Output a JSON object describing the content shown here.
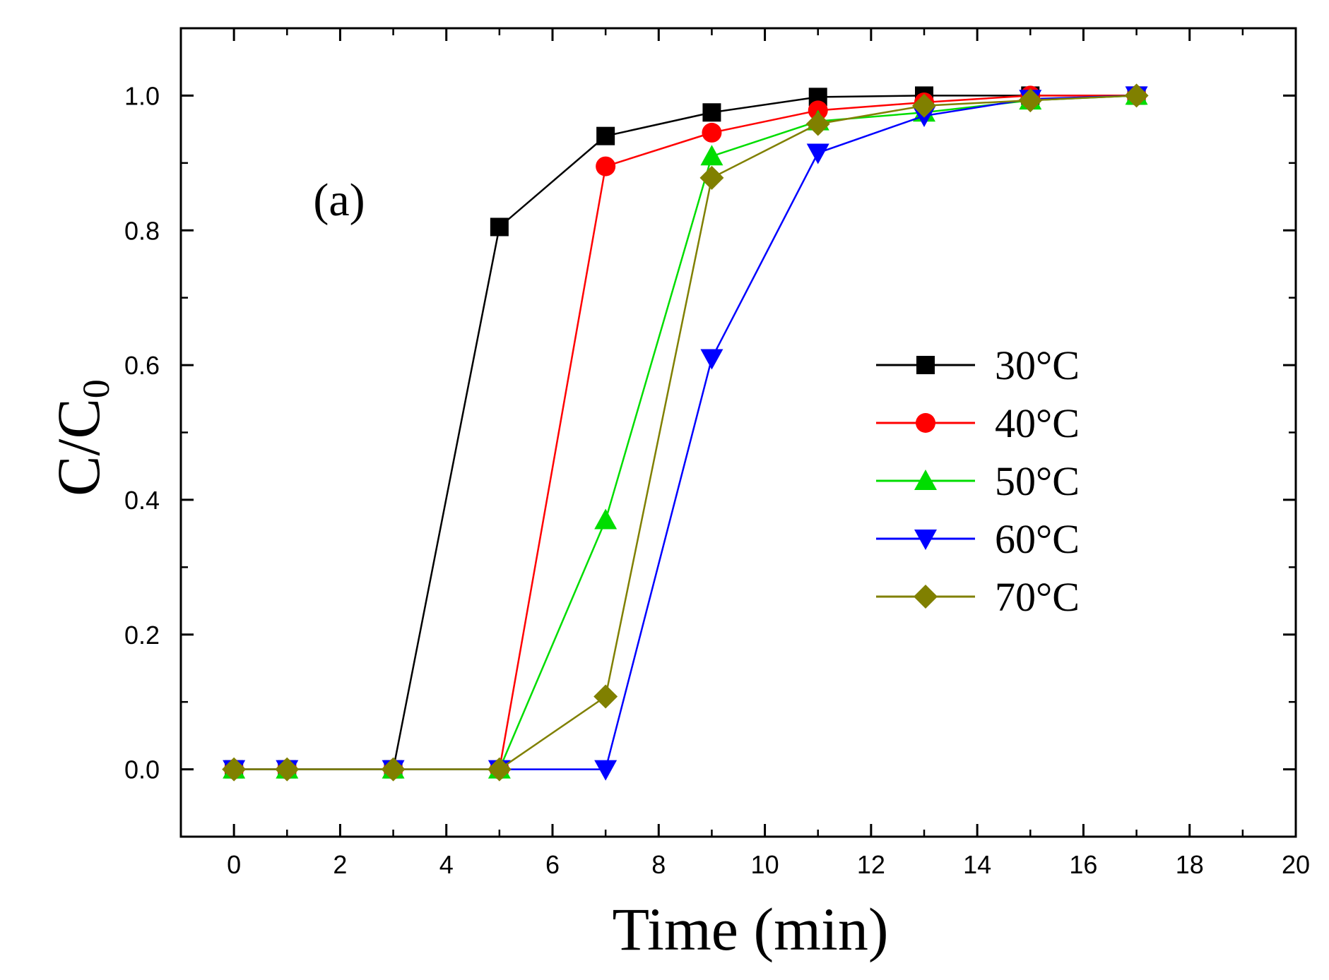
{
  "chart_data": {
    "type": "line",
    "title": "",
    "panel_label": "(a)",
    "xlabel": "Time (min)",
    "ylabel_main": "C/C",
    "ylabel_sub": "0",
    "xlim": [
      -1,
      20
    ],
    "ylim": [
      -0.1,
      1.1
    ],
    "xticks": [
      0,
      2,
      4,
      6,
      8,
      10,
      12,
      14,
      16,
      18,
      20
    ],
    "xtick_labels": [
      "0",
      "2",
      "4",
      "6",
      "8",
      "10",
      "12",
      "14",
      "16",
      "18",
      "20"
    ],
    "yticks": [
      0.0,
      0.2,
      0.4,
      0.6,
      0.8,
      1.0
    ],
    "ytick_labels": [
      "0.0",
      "0.2",
      "0.4",
      "0.6",
      "0.8",
      "1.0"
    ],
    "grid": false,
    "legend_position": "center-right",
    "x": [
      0,
      1,
      3,
      5,
      7,
      9,
      11,
      13,
      15,
      17
    ],
    "series": [
      {
        "name": "30°C",
        "color": "#000000",
        "marker": "square",
        "values": [
          0,
          0,
          0,
          0.805,
          0.94,
          0.975,
          0.998,
          1.0,
          1.0,
          1.0
        ]
      },
      {
        "name": "40°C",
        "color": "#ff0000",
        "marker": "circle",
        "values": [
          0,
          0,
          0,
          0,
          0.895,
          0.945,
          0.978,
          0.99,
          1.0,
          1.0
        ]
      },
      {
        "name": "50°C",
        "color": "#00dd00",
        "marker": "triangle-up",
        "values": [
          0,
          0,
          0,
          0,
          0.37,
          0.91,
          0.962,
          0.975,
          0.993,
          1.0
        ]
      },
      {
        "name": "60°C",
        "color": "#0000ff",
        "marker": "triangle-down",
        "values": [
          0,
          0,
          0,
          0,
          0,
          0.61,
          0.915,
          0.97,
          0.995,
          1.0
        ]
      },
      {
        "name": "70°C",
        "color": "#808000",
        "marker": "diamond",
        "values": [
          0,
          0,
          0,
          0,
          0.108,
          0.878,
          0.958,
          0.985,
          0.993,
          1.0
        ]
      }
    ]
  }
}
